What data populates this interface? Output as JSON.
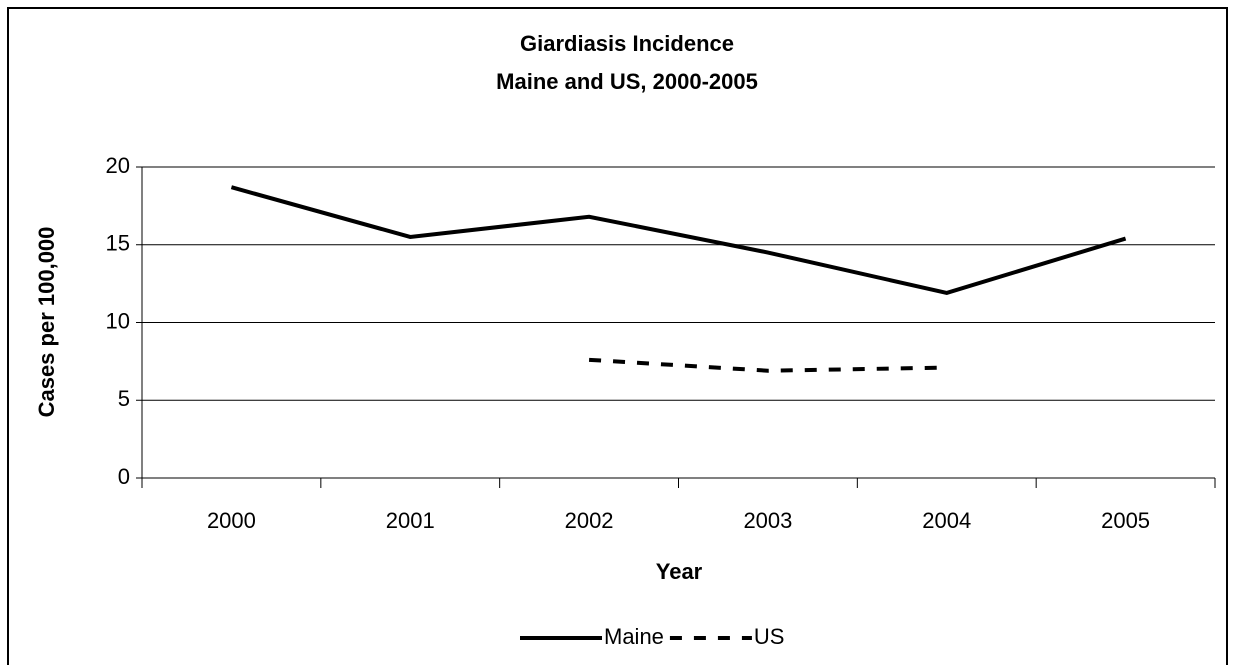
{
  "chart_data": {
    "type": "line",
    "title": [
      "Giardiasis Incidence",
      "Maine and US, 2000-2005"
    ],
    "x_label": "Year",
    "y_label": "Cases per 100,000",
    "categories": [
      "2000",
      "2001",
      "2002",
      "2003",
      "2004",
      "2005"
    ],
    "series": [
      {
        "name": "Maine",
        "color": "#000000",
        "dash": false,
        "values": [
          18.7,
          15.5,
          16.8,
          14.5,
          11.9,
          15.4
        ]
      },
      {
        "name": "US",
        "color": "#000000",
        "dash": true,
        "values": [
          null,
          null,
          7.6,
          6.9,
          7.1,
          null
        ]
      }
    ],
    "ylim": [
      0,
      20
    ],
    "yticks": [
      0,
      5,
      10,
      15,
      20
    ],
    "grid": true,
    "legend": "bottom"
  }
}
